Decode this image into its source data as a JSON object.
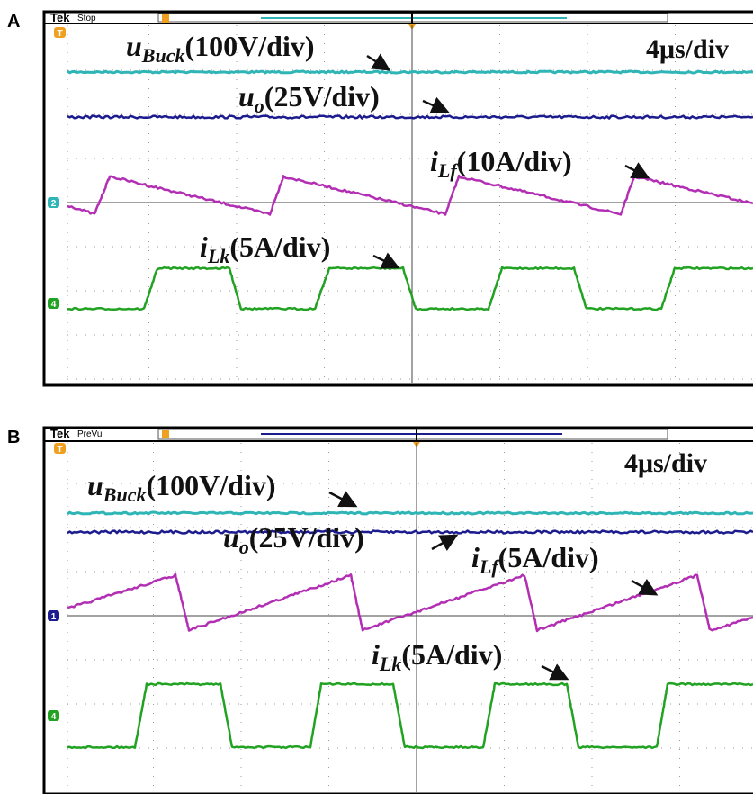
{
  "panels": [
    {
      "label": "A",
      "brand": "Tek",
      "status": "Stop",
      "timebase": "4μs/div",
      "markers": [
        "T",
        "2",
        "4"
      ],
      "traces": [
        {
          "symbol": "u",
          "subscript": "Buck",
          "scale": "(100V/div)"
        },
        {
          "symbol": "u",
          "subscript": "o",
          "scale": "(25V/div)"
        },
        {
          "symbol": "i",
          "subscript": "Lf",
          "scale": "(10A/div)"
        },
        {
          "symbol": "i",
          "subscript": "Lk",
          "scale": "(5A/div)"
        }
      ]
    },
    {
      "label": "B",
      "brand": "Tek",
      "status": "PreVu",
      "timebase": "4μs/div",
      "markers": [
        "T",
        "1",
        "4"
      ],
      "traces": [
        {
          "symbol": "u",
          "subscript": "Buck",
          "scale": "(100V/div)"
        },
        {
          "symbol": "u",
          "subscript": "o",
          "scale": "(25V/div)"
        },
        {
          "symbol": "i",
          "subscript": "Lf",
          "scale": "(5A/div)"
        },
        {
          "symbol": "i",
          "subscript": "Lk",
          "scale": "(5A/div)"
        }
      ]
    }
  ]
}
